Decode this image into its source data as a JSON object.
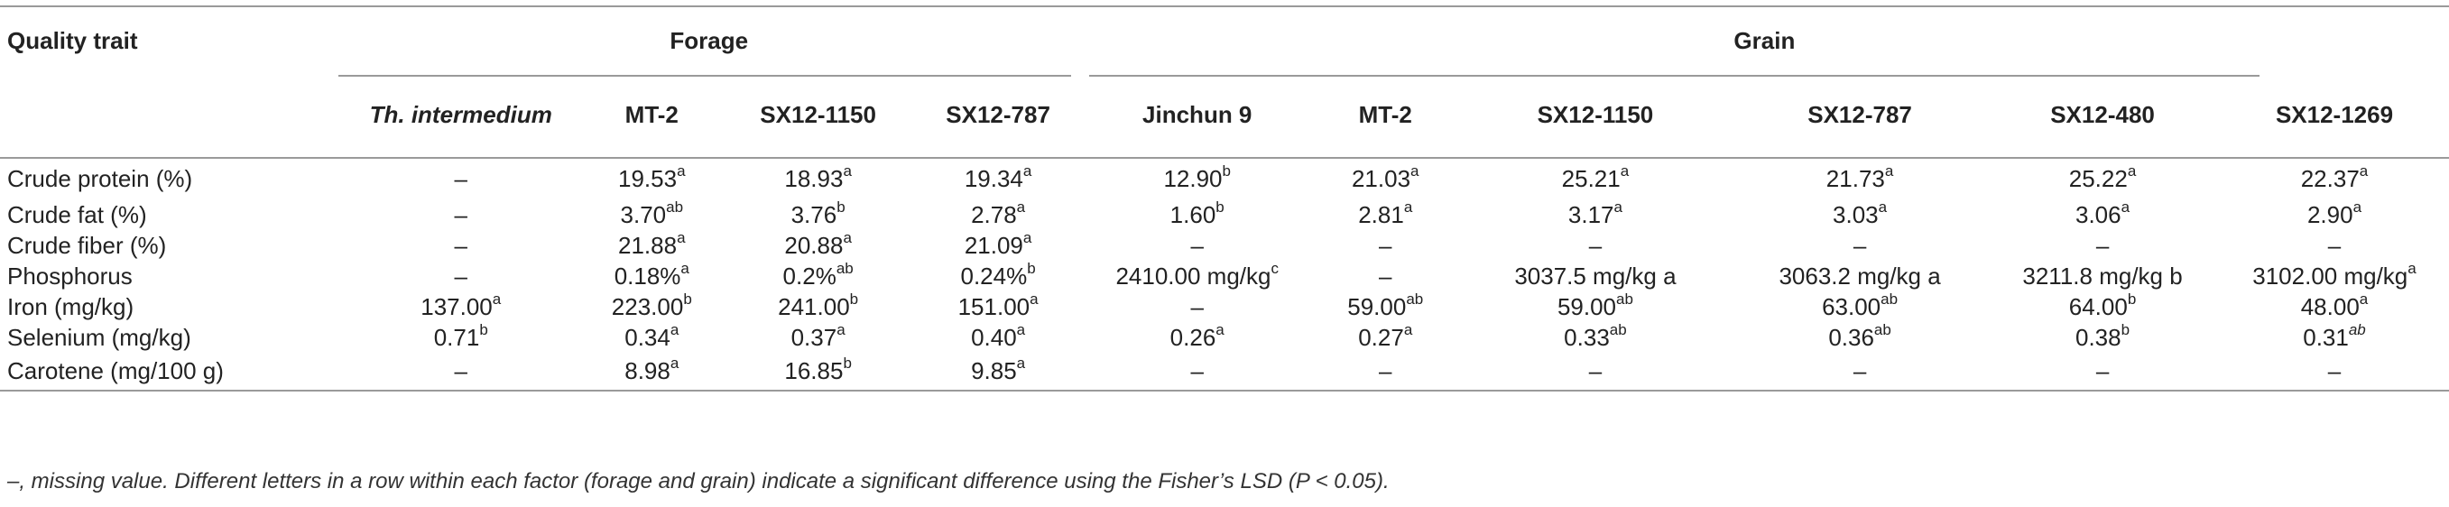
{
  "table": {
    "corner_header": "Quality trait",
    "groups": {
      "forage": "Forage",
      "grain": "Grain"
    },
    "forage_columns": [
      "Th. intermedium",
      "MT-2",
      "SX12-1150",
      "SX12-787"
    ],
    "grain_columns": [
      "Jinchun 9",
      "MT-2",
      "SX12-1150",
      "SX12-787",
      "SX12-480",
      "SX12-1269"
    ],
    "rows": [
      {
        "trait": "Crude protein (%)",
        "cells": [
          {
            "v": "–",
            "s": ""
          },
          {
            "v": "19.53",
            "s": "a"
          },
          {
            "v": "18.93",
            "s": "a"
          },
          {
            "v": "19.34",
            "s": "a"
          },
          {
            "v": "12.90",
            "s": "b"
          },
          {
            "v": "21.03",
            "s": "a"
          },
          {
            "v": "25.21",
            "s": "a"
          },
          {
            "v": "21.73",
            "s": "a"
          },
          {
            "v": "25.22",
            "s": "a"
          },
          {
            "v": "22.37",
            "s": "a"
          }
        ]
      },
      {
        "trait": "Crude fat (%)",
        "cells": [
          {
            "v": "–",
            "s": ""
          },
          {
            "v": "3.70",
            "s": "ab"
          },
          {
            "v": "3.76",
            "s": "b"
          },
          {
            "v": "2.78",
            "s": "a"
          },
          {
            "v": "1.60",
            "s": "b"
          },
          {
            "v": "2.81",
            "s": "a"
          },
          {
            "v": "3.17",
            "s": "a"
          },
          {
            "v": "3.03",
            "s": "a"
          },
          {
            "v": "3.06",
            "s": "a"
          },
          {
            "v": "2.90",
            "s": "a"
          }
        ]
      },
      {
        "trait": "Crude fiber (%)",
        "cells": [
          {
            "v": "–",
            "s": ""
          },
          {
            "v": "21.88",
            "s": "a"
          },
          {
            "v": "20.88",
            "s": "a"
          },
          {
            "v": "21.09",
            "s": "a"
          },
          {
            "v": "–",
            "s": ""
          },
          {
            "v": "–",
            "s": ""
          },
          {
            "v": "–",
            "s": ""
          },
          {
            "v": "–",
            "s": ""
          },
          {
            "v": "–",
            "s": ""
          },
          {
            "v": "–",
            "s": ""
          }
        ]
      },
      {
        "trait": "Phosphorus",
        "cells": [
          {
            "v": "–",
            "s": ""
          },
          {
            "v": "0.18%",
            "s": "a"
          },
          {
            "v": "0.2%",
            "s": "ab"
          },
          {
            "v": "0.24%",
            "s": "b"
          },
          {
            "v": "2410.00 mg/kg",
            "s": "c"
          },
          {
            "v": "–",
            "s": ""
          },
          {
            "v": "3037.5 mg/kg a",
            "s": ""
          },
          {
            "v": "3063.2 mg/kg a",
            "s": ""
          },
          {
            "v": "3211.8 mg/kg b",
            "s": ""
          },
          {
            "v": "3102.00 mg/kg",
            "s": "a"
          }
        ]
      },
      {
        "trait": "Iron (mg/kg)",
        "cells": [
          {
            "v": "137.00",
            "s": "a"
          },
          {
            "v": "223.00",
            "s": "b"
          },
          {
            "v": "241.00",
            "s": "b"
          },
          {
            "v": "151.00",
            "s": "a"
          },
          {
            "v": "–",
            "s": ""
          },
          {
            "v": "59.00",
            "s": "ab"
          },
          {
            "v": "59.00",
            "s": "ab"
          },
          {
            "v": "63.00",
            "s": "ab"
          },
          {
            "v": "64.00",
            "s": "b"
          },
          {
            "v": "48.00",
            "s": "a"
          }
        ]
      },
      {
        "trait": "Selenium (mg/kg)",
        "cells": [
          {
            "v": "0.71",
            "s": "b"
          },
          {
            "v": "0.34",
            "s": "a"
          },
          {
            "v": "0.37",
            "s": "a"
          },
          {
            "v": "0.40",
            "s": "a"
          },
          {
            "v": "0.26",
            "s": "a"
          },
          {
            "v": "0.27",
            "s": "a"
          },
          {
            "v": "0.33",
            "s": "ab"
          },
          {
            "v": "0.36",
            "s": "ab"
          },
          {
            "v": "0.38",
            "s": "b"
          },
          {
            "v": "0.31",
            "s": "ab",
            "italic_sup": true
          }
        ]
      },
      {
        "trait": "Carotene (mg/100 g)",
        "cells": [
          {
            "v": "–",
            "s": ""
          },
          {
            "v": "8.98",
            "s": "a"
          },
          {
            "v": "16.85",
            "s": "b"
          },
          {
            "v": "9.85",
            "s": "a"
          },
          {
            "v": "–",
            "s": ""
          },
          {
            "v": "–",
            "s": ""
          },
          {
            "v": "–",
            "s": ""
          },
          {
            "v": "–",
            "s": ""
          },
          {
            "v": "–",
            "s": ""
          },
          {
            "v": "–",
            "s": ""
          }
        ]
      }
    ],
    "footnote": "–, missing value. Different letters in a row within each factor (forage and grain) indicate a significant difference using the Fisher’s LSD (P < 0.05)."
  }
}
